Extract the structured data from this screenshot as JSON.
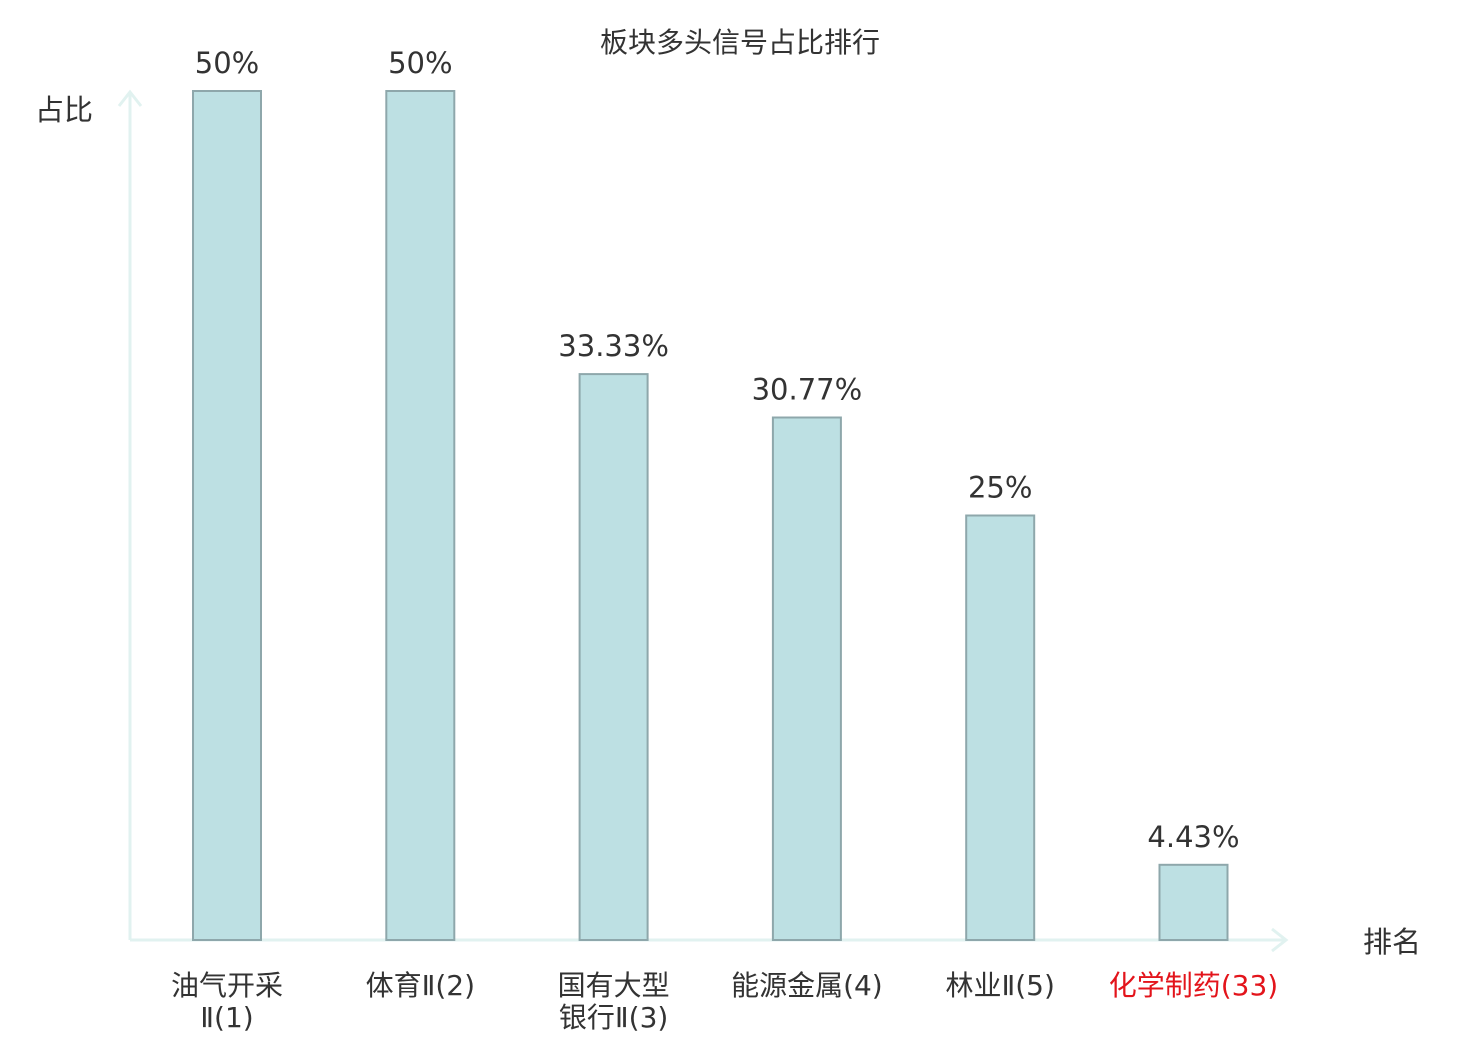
{
  "chart_data": {
    "type": "bar",
    "title": "板块多头信号占比排行",
    "ylabel": "占比",
    "xlabel": "排名",
    "ylim": [
      0,
      50
    ],
    "grid": false,
    "categories": [
      [
        "油气开采",
        "Ⅱ(1)"
      ],
      [
        "体育Ⅱ(2)"
      ],
      [
        "国有大型",
        "银行Ⅱ(3)"
      ],
      [
        "能源金属(4)"
      ],
      [
        "林业Ⅱ(5)"
      ],
      [
        "化学制药(33)"
      ]
    ],
    "values": [
      50,
      50,
      33.33,
      30.77,
      25,
      4.43
    ],
    "value_labels": [
      "50%",
      "50%",
      "33.33%",
      "30.77%",
      "25%",
      "4.43%"
    ],
    "highlight_index": 5,
    "colors": {
      "bar_fill": "#bde0e3",
      "bar_stroke": "#8ea7ab",
      "axis": "#e1f2f0",
      "text": "#333333",
      "highlight_text": "#e3141b"
    }
  }
}
